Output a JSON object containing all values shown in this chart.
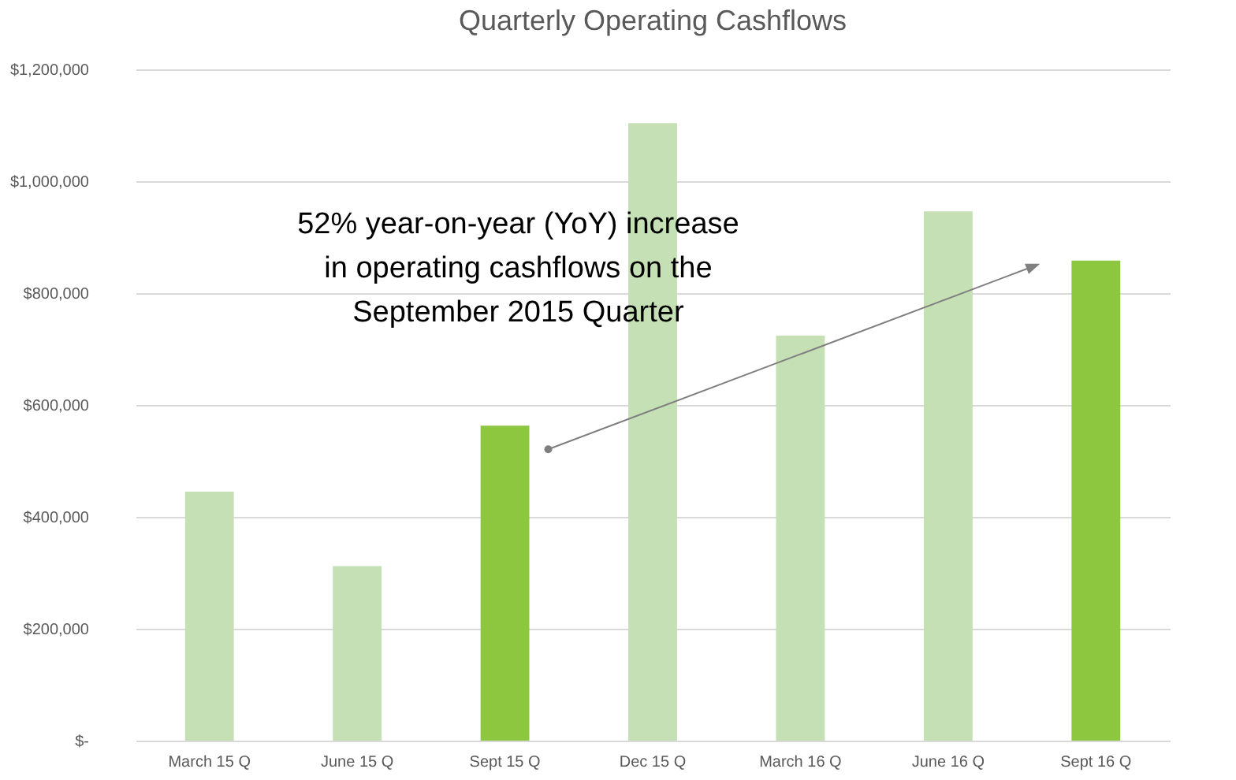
{
  "chart_data": {
    "type": "bar",
    "title": "Quarterly Operating Cashflows",
    "categories": [
      "March 15 Q",
      "June 15 Q",
      "Sept 15 Q",
      "Dec 15 Q",
      "March 16 Q",
      "June 16 Q",
      "Sept 16 Q"
    ],
    "values": [
      445000,
      312000,
      563000,
      1104000,
      724000,
      946000,
      858000
    ],
    "colors": [
      "#c5e0b4",
      "#c5e0b4",
      "#8dc63f",
      "#c5e0b4",
      "#c5e0b4",
      "#c5e0b4",
      "#8dc63f"
    ],
    "ylim": [
      0,
      1200000
    ],
    "yticks": [
      {
        "value": 0,
        "label": "$-"
      },
      {
        "value": 200000,
        "label": "$200,000"
      },
      {
        "value": 400000,
        "label": "$400,000"
      },
      {
        "value": 600000,
        "label": "$600,000"
      },
      {
        "value": 800000,
        "label": "$800,000"
      },
      {
        "value": 1000000,
        "label": "$1,000,000"
      },
      {
        "value": 1200000,
        "label": "$1,200,000"
      }
    ],
    "grid": "y",
    "annotations": [
      "52% year-on-year (YoY) increase in operating cashflows on the September 2015 Quarter"
    ]
  }
}
